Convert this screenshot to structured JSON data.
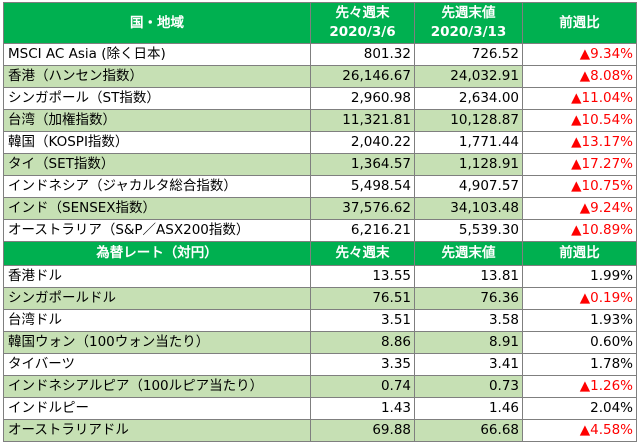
{
  "stocks": {
    "headers": {
      "region": "国・地域",
      "prev2_label": "先々週末",
      "prev2_date": "2020/3/6",
      "prev1_label": "先週末値",
      "prev1_date": "2020/3/13",
      "change": "前週比"
    },
    "rows": [
      {
        "name": "MSCI AC Asia (除く日本)",
        "prev2": "801.32",
        "prev1": "726.52",
        "change": "▲9.34%"
      },
      {
        "name": "香港（ハンセン指数）",
        "prev2": "26,146.67",
        "prev1": "24,032.91",
        "change": "▲8.08%"
      },
      {
        "name": "シンガポール（ST指数）",
        "prev2": "2,960.98",
        "prev1": "2,634.00",
        "change": "▲11.04%"
      },
      {
        "name": "台湾（加権指数）",
        "prev2": "11,321.81",
        "prev1": "10,128.87",
        "change": "▲10.54%"
      },
      {
        "name": "韓国（KOSPI指数）",
        "prev2": "2,040.22",
        "prev1": "1,771.44",
        "change": "▲13.17%"
      },
      {
        "name": "タイ（SET指数）",
        "prev2": "1,364.57",
        "prev1": "1,128.91",
        "change": "▲17.27%"
      },
      {
        "name": "インドネシア（ジャカルタ総合指数）",
        "prev2": "5,498.54",
        "prev1": "4,907.57",
        "change": "▲10.75%"
      },
      {
        "name": "インド（SENSEX指数）",
        "prev2": "37,576.62",
        "prev1": "34,103.48",
        "change": "▲9.24%"
      },
      {
        "name": "オーストラリア（S&P／ASX200指数）",
        "prev2": "6,216.21",
        "prev1": "5,539.30",
        "change": "▲10.89%"
      }
    ]
  },
  "fx": {
    "headers": {
      "title": "為替レート（対円）",
      "prev2_label": "先々週末",
      "prev1_label": "先週末値",
      "change": "前週比"
    },
    "rows": [
      {
        "name": "香港ドル",
        "prev2": "13.55",
        "prev1": "13.81",
        "change": "1.99%",
        "down": false
      },
      {
        "name": "シンガポールドル",
        "prev2": "76.51",
        "prev1": "76.36",
        "change": "▲0.19%",
        "down": true
      },
      {
        "name": "台湾ドル",
        "prev2": "3.51",
        "prev1": "3.58",
        "change": "1.93%",
        "down": false
      },
      {
        "name": "韓国ウォン（100ウォン当たり）",
        "prev2": "8.86",
        "prev1": "8.91",
        "change": "0.60%",
        "down": false
      },
      {
        "name": "タイバーツ",
        "prev2": "3.35",
        "prev1": "3.41",
        "change": "1.78%",
        "down": false
      },
      {
        "name": "インドネシアルピア（100ルピア当たり）",
        "prev2": "0.74",
        "prev1": "0.73",
        "change": "▲1.26%",
        "down": true
      },
      {
        "name": "インドルピー",
        "prev2": "1.43",
        "prev1": "1.46",
        "change": "2.04%",
        "down": false
      },
      {
        "name": "オーストラリアドル",
        "prev2": "69.88",
        "prev1": "66.68",
        "change": "▲4.58%",
        "down": true
      }
    ]
  },
  "colors": {
    "header_bg": "#00b050",
    "header_text": "#ffffff",
    "band_green": "#c6e0b4",
    "negative_text": "#ff0000"
  }
}
